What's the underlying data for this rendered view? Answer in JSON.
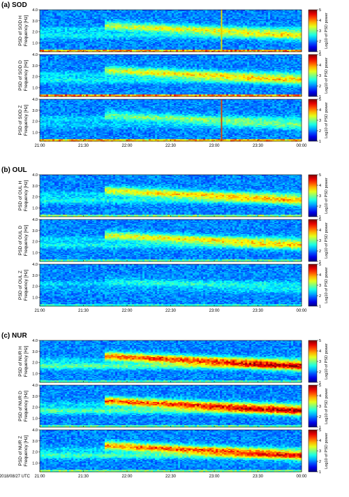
{
  "chart_data": {
    "type": "heatmap",
    "date_label": "2018/08/27 UTC",
    "x_tick_labels": [
      "21:00",
      "21:30",
      "22:00",
      "22:30",
      "23:00",
      "23:30",
      "00:00"
    ],
    "y_tick_labels": [
      "1.0",
      "2.0",
      "3.0",
      "4.0"
    ],
    "ylim": [
      0.2,
      4.0
    ],
    "colorbar": {
      "label": "Log10 of PSD power",
      "range": [
        1,
        5
      ],
      "ticks": [
        "1",
        "2",
        "3",
        "4",
        "5"
      ],
      "colormap": "jet"
    },
    "groups": [
      {
        "title": "(a) SOD",
        "panels": [
          {
            "ylabel_top": "PSD of SOD H",
            "ylabel_bottom": "Frequency [Hz]",
            "strength": 0.55,
            "bottom_band": 0.95,
            "vline_time": "23:05"
          },
          {
            "ylabel_top": "PSD of SOD D",
            "ylabel_bottom": "Frequency [Hz]",
            "strength": 0.6,
            "bottom_band": 1.0
          },
          {
            "ylabel_top": "PSD of SOD Z",
            "ylabel_bottom": "Frequency [Hz]",
            "strength": 0.35,
            "bottom_band": 0.9,
            "vline_time": "23:05"
          }
        ]
      },
      {
        "title": "(b) OUL",
        "panels": [
          {
            "ylabel_top": "PSD of OUL H",
            "ylabel_bottom": "Frequency [Hz]",
            "strength": 0.65,
            "bottom_band": 0.5
          },
          {
            "ylabel_top": "PSD of OUL D",
            "ylabel_bottom": "Frequency [Hz]",
            "strength": 0.6,
            "bottom_band": 0.4
          },
          {
            "ylabel_top": "PSD of OUL Z",
            "ylabel_bottom": "Frequency [Hz]",
            "strength": 0.15,
            "bottom_band": 0.3
          }
        ]
      },
      {
        "title": "(c) NUR",
        "panels": [
          {
            "ylabel_top": "PSD of NUR H",
            "ylabel_bottom": "Frequency [Hz]",
            "strength": 1.0,
            "bottom_band": 0.4
          },
          {
            "ylabel_top": "PSD of NUR D",
            "ylabel_bottom": "Frequency [Hz]",
            "strength": 1.0,
            "bottom_band": 0.4
          },
          {
            "ylabel_top": "PSD of NUR Z",
            "ylabel_bottom": "Frequency [Hz]",
            "strength": 0.9,
            "bottom_band": 0.5
          }
        ]
      }
    ],
    "features": {
      "event_start": "21:50",
      "event_freq_start_hz": 2.6,
      "event_freq_end_hz": 1.7,
      "background_band_hz": 1.7
    }
  }
}
